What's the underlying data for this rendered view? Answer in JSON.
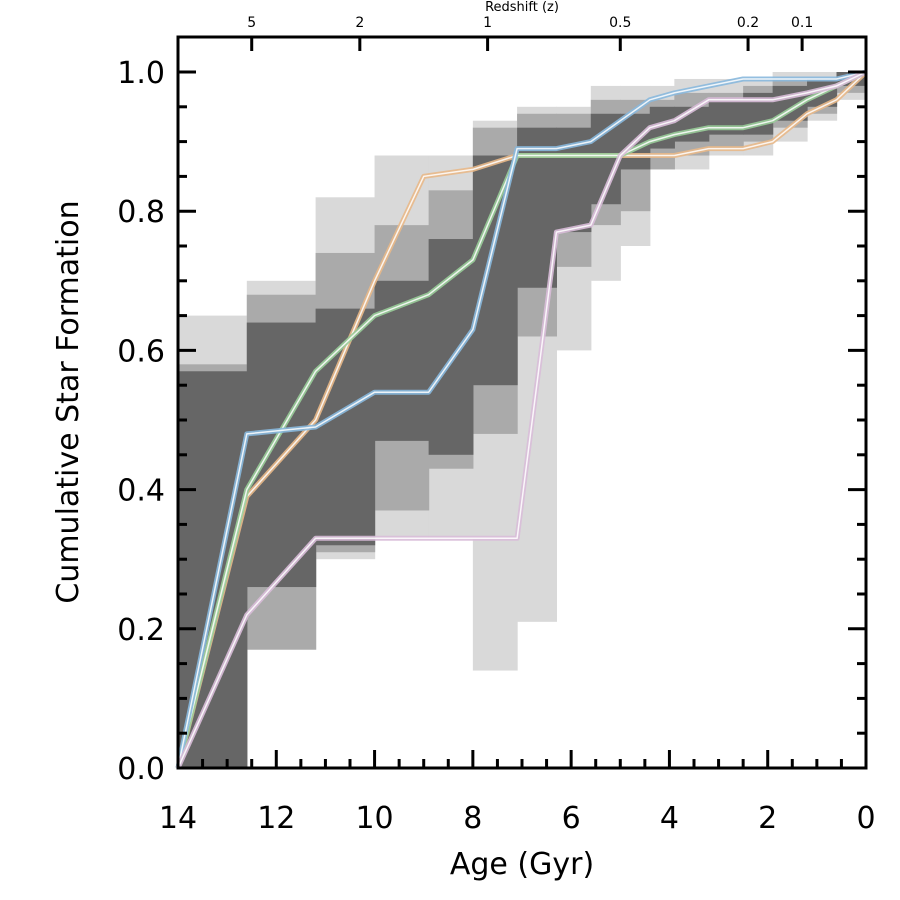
{
  "chart_data": {
    "type": "line",
    "title": "",
    "xlabel": "Age (Gyr)",
    "ylabel": "Cumulative Star Formation",
    "top_axis_label": "Redshift (z)",
    "xlim": [
      14,
      0
    ],
    "ylim": [
      0,
      1.0
    ],
    "x_ticks": [
      14,
      12,
      10,
      8,
      6,
      4,
      2,
      0
    ],
    "x_tick_labels": [
      "14",
      "12",
      "10",
      "8",
      "6",
      "4",
      "2",
      "0"
    ],
    "y_ticks": [
      0.0,
      0.2,
      0.4,
      0.6,
      0.8,
      1.0
    ],
    "y_tick_labels": [
      "0.0",
      "0.2",
      "0.4",
      "0.6",
      "0.8",
      "1.0"
    ],
    "top_ticks": [
      {
        "label": "5",
        "age": 12.5
      },
      {
        "label": "2",
        "age": 10.3
      },
      {
        "label": "1",
        "age": 7.7
      },
      {
        "label": "0.5",
        "age": 5.0
      },
      {
        "label": "0.2",
        "age": 2.4
      },
      {
        "label": "0.1",
        "age": 1.3
      }
    ],
    "uncertainty_bands": [
      {
        "name": "light",
        "color": "#d9d9d9",
        "columns": [
          {
            "x0": 14.0,
            "x1": 12.6,
            "lo": 0.0,
            "hi": 0.65
          },
          {
            "x0": 12.6,
            "x1": 11.2,
            "lo": 0.17,
            "hi": 0.7
          },
          {
            "x0": 11.2,
            "x1": 10.0,
            "lo": 0.3,
            "hi": 0.82
          },
          {
            "x0": 10.0,
            "x1": 8.9,
            "lo": 0.33,
            "hi": 0.88
          },
          {
            "x0": 8.9,
            "x1": 8.0,
            "lo": 0.33,
            "hi": 0.88
          },
          {
            "x0": 8.0,
            "x1": 7.1,
            "lo": 0.14,
            "hi": 0.93
          },
          {
            "x0": 7.1,
            "x1": 6.3,
            "lo": 0.21,
            "hi": 0.95
          },
          {
            "x0": 6.3,
            "x1": 5.6,
            "lo": 0.6,
            "hi": 0.95
          },
          {
            "x0": 5.6,
            "x1": 5.0,
            "lo": 0.7,
            "hi": 0.98
          },
          {
            "x0": 5.0,
            "x1": 4.4,
            "lo": 0.75,
            "hi": 0.98
          },
          {
            "x0": 4.4,
            "x1": 3.9,
            "lo": 0.86,
            "hi": 0.98
          },
          {
            "x0": 3.9,
            "x1": 3.2,
            "lo": 0.86,
            "hi": 0.99
          },
          {
            "x0": 3.2,
            "x1": 2.5,
            "lo": 0.88,
            "hi": 0.99
          },
          {
            "x0": 2.5,
            "x1": 1.9,
            "lo": 0.88,
            "hi": 0.99
          },
          {
            "x0": 1.9,
            "x1": 1.2,
            "lo": 0.9,
            "hi": 1.0
          },
          {
            "x0": 1.2,
            "x1": 0.6,
            "lo": 0.93,
            "hi": 1.0
          },
          {
            "x0": 0.6,
            "x1": 0.0,
            "lo": 0.96,
            "hi": 1.0
          }
        ]
      },
      {
        "name": "medium",
        "color": "#aaaaaa",
        "columns": [
          {
            "x0": 14.0,
            "x1": 12.6,
            "lo": 0.0,
            "hi": 0.58
          },
          {
            "x0": 12.6,
            "x1": 11.2,
            "lo": 0.17,
            "hi": 0.68
          },
          {
            "x0": 11.2,
            "x1": 10.0,
            "lo": 0.31,
            "hi": 0.74
          },
          {
            "x0": 10.0,
            "x1": 8.9,
            "lo": 0.37,
            "hi": 0.78
          },
          {
            "x0": 8.9,
            "x1": 8.0,
            "lo": 0.43,
            "hi": 0.83
          },
          {
            "x0": 8.0,
            "x1": 7.1,
            "lo": 0.48,
            "hi": 0.92
          },
          {
            "x0": 7.1,
            "x1": 6.3,
            "lo": 0.62,
            "hi": 0.94
          },
          {
            "x0": 6.3,
            "x1": 5.6,
            "lo": 0.72,
            "hi": 0.94
          },
          {
            "x0": 5.6,
            "x1": 5.0,
            "lo": 0.78,
            "hi": 0.96
          },
          {
            "x0": 5.0,
            "x1": 4.4,
            "lo": 0.8,
            "hi": 0.96
          },
          {
            "x0": 4.4,
            "x1": 3.9,
            "lo": 0.86,
            "hi": 0.96
          },
          {
            "x0": 3.9,
            "x1": 3.2,
            "lo": 0.88,
            "hi": 0.97
          },
          {
            "x0": 3.2,
            "x1": 2.5,
            "lo": 0.89,
            "hi": 0.97
          },
          {
            "x0": 2.5,
            "x1": 1.9,
            "lo": 0.9,
            "hi": 0.98
          },
          {
            "x0": 1.9,
            "x1": 1.2,
            "lo": 0.92,
            "hi": 0.99
          },
          {
            "x0": 1.2,
            "x1": 0.6,
            "lo": 0.94,
            "hi": 0.99
          },
          {
            "x0": 0.6,
            "x1": 0.0,
            "lo": 0.97,
            "hi": 1.0
          }
        ]
      },
      {
        "name": "dark",
        "color": "#666666",
        "columns": [
          {
            "x0": 14.0,
            "x1": 12.6,
            "lo": 0.0,
            "hi": 0.57
          },
          {
            "x0": 12.6,
            "x1": 11.2,
            "lo": 0.26,
            "hi": 0.64
          },
          {
            "x0": 11.2,
            "x1": 10.0,
            "lo": 0.32,
            "hi": 0.66
          },
          {
            "x0": 10.0,
            "x1": 8.9,
            "lo": 0.47,
            "hi": 0.7
          },
          {
            "x0": 8.9,
            "x1": 8.0,
            "lo": 0.45,
            "hi": 0.76
          },
          {
            "x0": 8.0,
            "x1": 7.1,
            "lo": 0.55,
            "hi": 0.88
          },
          {
            "x0": 7.1,
            "x1": 6.3,
            "lo": 0.69,
            "hi": 0.92
          },
          {
            "x0": 6.3,
            "x1": 5.6,
            "lo": 0.77,
            "hi": 0.92
          },
          {
            "x0": 5.6,
            "x1": 5.0,
            "lo": 0.81,
            "hi": 0.94
          },
          {
            "x0": 5.0,
            "x1": 4.4,
            "lo": 0.86,
            "hi": 0.94
          },
          {
            "x0": 4.4,
            "x1": 3.9,
            "lo": 0.89,
            "hi": 0.95
          },
          {
            "x0": 3.9,
            "x1": 3.2,
            "lo": 0.9,
            "hi": 0.95
          },
          {
            "x0": 3.2,
            "x1": 2.5,
            "lo": 0.91,
            "hi": 0.96
          },
          {
            "x0": 2.5,
            "x1": 1.9,
            "lo": 0.91,
            "hi": 0.97
          },
          {
            "x0": 1.9,
            "x1": 1.2,
            "lo": 0.93,
            "hi": 0.98
          },
          {
            "x0": 1.2,
            "x1": 0.6,
            "lo": 0.95,
            "hi": 0.99
          },
          {
            "x0": 0.6,
            "x1": 0.0,
            "lo": 0.98,
            "hi": 1.0
          }
        ]
      }
    ],
    "series": [
      {
        "name": "orange",
        "color": "#e8b888",
        "x": [
          14.0,
          12.6,
          11.2,
          10.0,
          9.0,
          8.0,
          7.1,
          6.3,
          5.6,
          5.0,
          4.4,
          3.9,
          3.2,
          2.5,
          1.9,
          1.2,
          0.6,
          0.0
        ],
        "y": [
          0.0,
          0.39,
          0.5,
          0.7,
          0.85,
          0.86,
          0.88,
          0.88,
          0.88,
          0.88,
          0.88,
          0.88,
          0.89,
          0.89,
          0.9,
          0.94,
          0.96,
          1.0
        ]
      },
      {
        "name": "green",
        "color": "#99cc99",
        "x": [
          14.0,
          12.6,
          11.2,
          10.0,
          8.9,
          8.0,
          7.1,
          6.3,
          5.6,
          5.0,
          4.4,
          3.9,
          3.2,
          2.5,
          1.9,
          1.2,
          0.6,
          0.0
        ],
        "y": [
          0.0,
          0.4,
          0.57,
          0.65,
          0.68,
          0.73,
          0.88,
          0.88,
          0.88,
          0.88,
          0.9,
          0.91,
          0.92,
          0.92,
          0.93,
          0.96,
          0.98,
          1.0
        ]
      },
      {
        "name": "blue",
        "color": "#88b8dd",
        "x": [
          14.0,
          12.6,
          11.2,
          10.0,
          8.9,
          8.0,
          7.1,
          6.3,
          5.6,
          5.0,
          4.4,
          3.9,
          3.2,
          2.5,
          1.9,
          1.2,
          0.6,
          0.0
        ],
        "y": [
          0.0,
          0.48,
          0.49,
          0.54,
          0.54,
          0.63,
          0.89,
          0.89,
          0.9,
          0.93,
          0.96,
          0.97,
          0.98,
          0.99,
          0.99,
          0.99,
          0.99,
          1.0
        ]
      },
      {
        "name": "pink",
        "color": "#d8bcd8",
        "x": [
          14.0,
          12.6,
          11.2,
          10.0,
          8.9,
          8.0,
          7.1,
          6.3,
          5.6,
          5.0,
          4.4,
          3.9,
          3.2,
          2.5,
          1.9,
          1.2,
          0.6,
          0.0
        ],
        "y": [
          0.0,
          0.22,
          0.33,
          0.33,
          0.33,
          0.33,
          0.33,
          0.77,
          0.78,
          0.88,
          0.92,
          0.93,
          0.96,
          0.96,
          0.96,
          0.97,
          0.98,
          1.0
        ]
      }
    ]
  }
}
